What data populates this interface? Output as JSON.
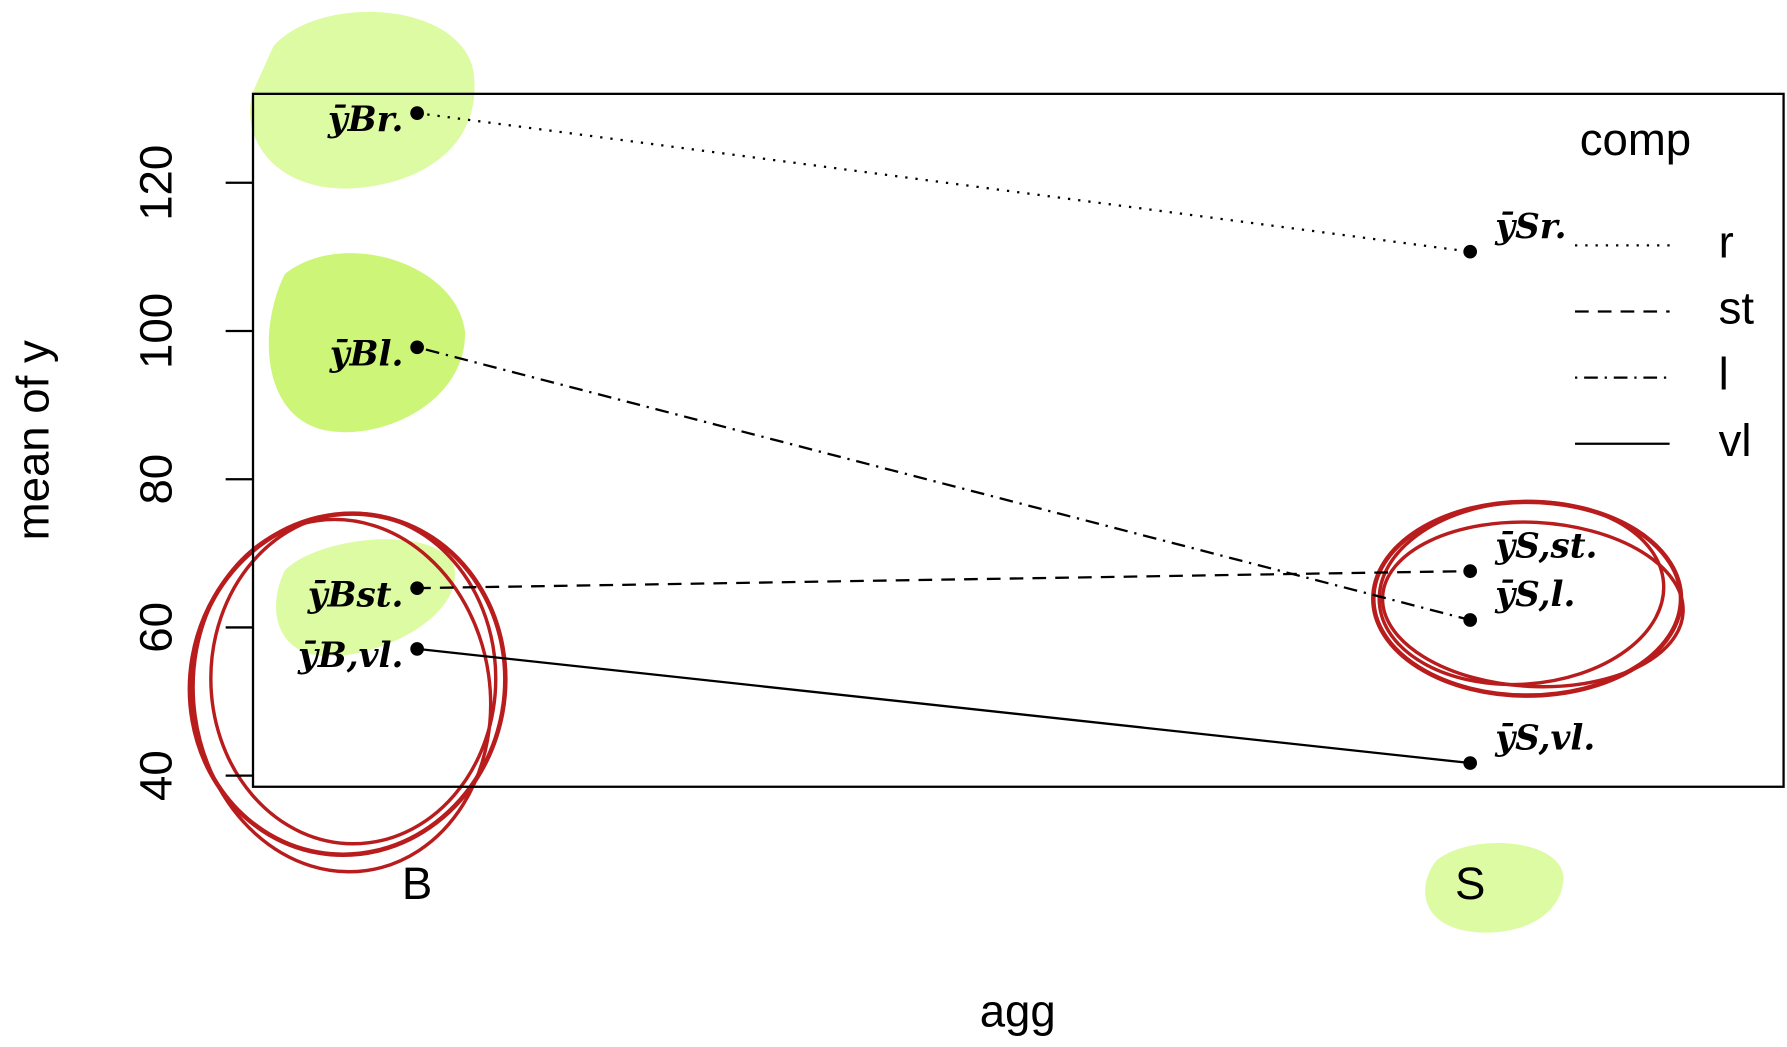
{
  "chart_data": {
    "type": "line",
    "x_label": "agg",
    "y_label": "mean of  y",
    "categories": [
      "B",
      "S"
    ],
    "legend_title": "comp",
    "legend": "top-right",
    "ylim": [
      38.5,
      132
    ],
    "yticks": [
      40,
      60,
      80,
      100,
      120
    ],
    "series": [
      {
        "name": "r",
        "color": "#000000",
        "linestyle": "dotted",
        "values": [
          129.4,
          110.7
        ],
        "point_labels": [
          "ȳBr.",
          "ȳSr."
        ]
      },
      {
        "name": "st",
        "color": "#000000",
        "linestyle": "dashed",
        "values": [
          65.3,
          67.6
        ],
        "point_labels": [
          "ȳBst.",
          "ȳS,st."
        ]
      },
      {
        "name": "l",
        "color": "#000000",
        "linestyle": "dotdash",
        "values": [
          97.8,
          61.0
        ],
        "point_labels": [
          "ȳBl.",
          "ȳS,l."
        ]
      },
      {
        "name": "vl",
        "color": "#000000",
        "linestyle": "solid",
        "values": [
          57.1,
          41.7
        ],
        "point_labels": [
          "ȳB,vl.",
          "ȳS,vl."
        ]
      }
    ]
  }
}
